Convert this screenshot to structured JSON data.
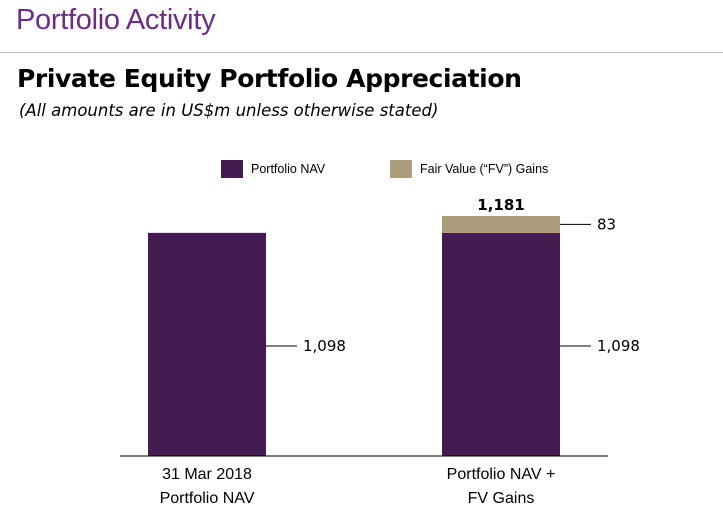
{
  "header": {
    "title": "Portfolio Activity"
  },
  "chart_data": {
    "type": "bar",
    "stacked": true,
    "title": "Private Equity Portfolio Appreciation",
    "subtitle": "(All amounts are in US$m unless otherwise stated)",
    "categories": [
      [
        "31 Mar 2018",
        "Portfolio NAV"
      ],
      [
        "Portfolio NAV +",
        "FV Gains"
      ]
    ],
    "series": [
      {
        "name": "Portfolio NAV",
        "color": "#441c52",
        "values": [
          1098,
          1098
        ],
        "labels": [
          "1,098",
          "1,098"
        ]
      },
      {
        "name": "Fair Value (“FV”) Gains",
        "color": "#ab9c7c",
        "values": [
          0,
          83
        ],
        "labels": [
          "",
          "83"
        ]
      }
    ],
    "totals": [
      "",
      "1,181"
    ],
    "ylim": [
      0,
      1181
    ],
    "legend_position": "top",
    "grid": false
  }
}
